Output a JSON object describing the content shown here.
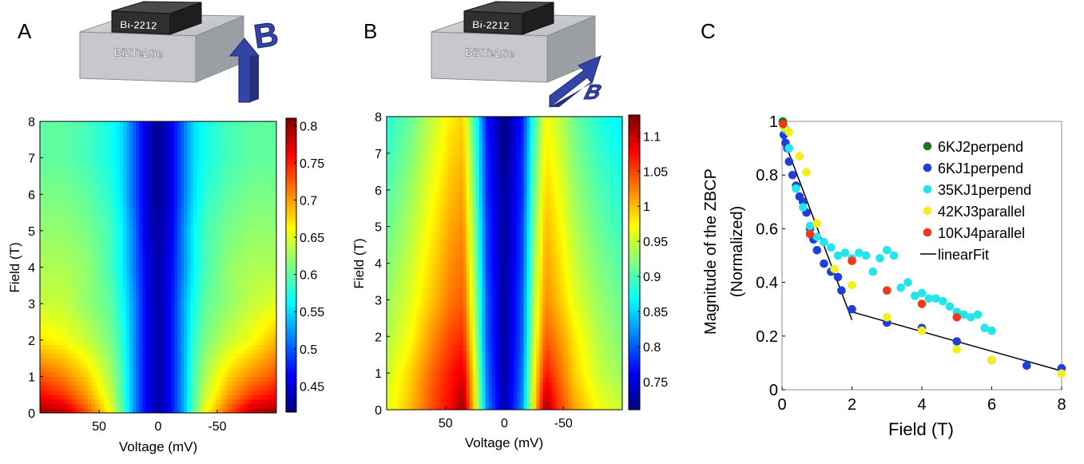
{
  "panels": {
    "a": {
      "letter": "A",
      "stack_top": "Bi-2212",
      "stack_bottom": "Bi2Te2Se",
      "field_symbol": "B",
      "field_orientation": "perpendicular"
    },
    "b": {
      "letter": "B",
      "stack_top": "Bi-2212",
      "stack_bottom": "Bi2Te2Se",
      "field_symbol": "B",
      "field_orientation": "parallel"
    },
    "c": {
      "letter": "C"
    }
  },
  "colors": {
    "colormap": "jet",
    "device_box": "#c9cbce",
    "device_chip": "#333333",
    "field_arrow": "#3444a6",
    "fit_line": "#000000"
  },
  "chart_data": [
    {
      "id": "A",
      "type": "heatmap",
      "xlabel": "Voltage (mV)",
      "ylabel": "Field (T)",
      "x_tick_labels": [
        "50",
        "0",
        "-50"
      ],
      "x_tick_values": [
        50,
        0,
        -50
      ],
      "xlim": [
        100,
        -100
      ],
      "y_tick_labels": [
        "0",
        "1",
        "2",
        "3",
        "4",
        "5",
        "6",
        "7",
        "8"
      ],
      "ylim": [
        0,
        8
      ],
      "colorbar_ticks": [
        "0.45",
        "0.5",
        "0.55",
        "0.6",
        "0.65",
        "0.7",
        "0.75",
        "0.8"
      ],
      "colorbar_tick_values": [
        0.45,
        0.5,
        0.55,
        0.6,
        0.65,
        0.7,
        0.75,
        0.8
      ],
      "clim": [
        0.415,
        0.81
      ],
      "colormap": "jet",
      "x_grid": [
        100,
        80,
        60,
        40,
        30,
        20,
        10,
        0,
        -10,
        -20,
        -30,
        -40,
        -60,
        -80,
        -100
      ],
      "y_grid": [
        0,
        0.5,
        1,
        2,
        3,
        4,
        5,
        6,
        7,
        8
      ],
      "z": [
        [
          0.8,
          0.79,
          0.73,
          0.66,
          0.6,
          0.52,
          0.46,
          0.43,
          0.46,
          0.52,
          0.6,
          0.66,
          0.73,
          0.79,
          0.8
        ],
        [
          0.76,
          0.74,
          0.7,
          0.64,
          0.59,
          0.52,
          0.46,
          0.43,
          0.46,
          0.52,
          0.59,
          0.64,
          0.7,
          0.74,
          0.76
        ],
        [
          0.73,
          0.71,
          0.68,
          0.63,
          0.59,
          0.52,
          0.46,
          0.43,
          0.46,
          0.52,
          0.59,
          0.63,
          0.68,
          0.71,
          0.73
        ],
        [
          0.67,
          0.66,
          0.64,
          0.61,
          0.58,
          0.52,
          0.46,
          0.43,
          0.46,
          0.52,
          0.58,
          0.61,
          0.64,
          0.66,
          0.69
        ],
        [
          0.64,
          0.64,
          0.62,
          0.6,
          0.57,
          0.52,
          0.46,
          0.43,
          0.46,
          0.52,
          0.57,
          0.6,
          0.62,
          0.64,
          0.65
        ],
        [
          0.63,
          0.63,
          0.62,
          0.59,
          0.56,
          0.51,
          0.46,
          0.43,
          0.46,
          0.51,
          0.56,
          0.59,
          0.62,
          0.63,
          0.63
        ],
        [
          0.62,
          0.62,
          0.61,
          0.59,
          0.56,
          0.51,
          0.45,
          0.43,
          0.45,
          0.51,
          0.56,
          0.59,
          0.61,
          0.62,
          0.62
        ],
        [
          0.61,
          0.61,
          0.6,
          0.58,
          0.55,
          0.5,
          0.45,
          0.42,
          0.45,
          0.5,
          0.55,
          0.58,
          0.6,
          0.61,
          0.61
        ],
        [
          0.6,
          0.6,
          0.59,
          0.57,
          0.55,
          0.5,
          0.45,
          0.42,
          0.45,
          0.5,
          0.55,
          0.57,
          0.59,
          0.6,
          0.6
        ],
        [
          0.6,
          0.6,
          0.59,
          0.57,
          0.55,
          0.5,
          0.45,
          0.42,
          0.45,
          0.5,
          0.55,
          0.57,
          0.59,
          0.6,
          0.6
        ]
      ]
    },
    {
      "id": "B",
      "type": "heatmap",
      "xlabel": "Voltage (mV)",
      "ylabel": "Field (T)",
      "x_tick_labels": [
        "50",
        "0",
        "-50"
      ],
      "x_tick_values": [
        50,
        0,
        -50
      ],
      "xlim": [
        100,
        -100
      ],
      "y_tick_labels": [
        "0",
        "1",
        "2",
        "3",
        "4",
        "5",
        "6",
        "7",
        "8"
      ],
      "ylim": [
        0,
        8
      ],
      "colorbar_ticks": [
        "0.75",
        "0.8",
        "0.85",
        "0.9",
        "0.95",
        "1",
        "1.05",
        "1.1"
      ],
      "colorbar_tick_values": [
        0.75,
        0.8,
        0.85,
        0.9,
        0.95,
        1.0,
        1.05,
        1.1
      ],
      "clim": [
        0.71,
        1.13
      ],
      "colormap": "jet",
      "x_grid": [
        100,
        80,
        60,
        45,
        35,
        25,
        15,
        0,
        -15,
        -25,
        -35,
        -45,
        -60,
        -80,
        -100
      ],
      "y_grid": [
        0,
        1,
        2,
        3,
        4,
        5,
        6,
        7,
        8
      ],
      "z": [
        [
          0.96,
          1.0,
          1.05,
          1.08,
          1.12,
          0.98,
          0.82,
          0.73,
          0.82,
          0.98,
          1.12,
          1.06,
          1.01,
          0.97,
          0.95
        ],
        [
          0.95,
          0.99,
          1.04,
          1.07,
          1.09,
          0.97,
          0.81,
          0.72,
          0.81,
          0.97,
          1.07,
          1.04,
          0.99,
          0.95,
          0.93
        ],
        [
          0.94,
          0.97,
          1.02,
          1.05,
          1.06,
          0.95,
          0.8,
          0.72,
          0.8,
          0.95,
          1.04,
          1.02,
          0.98,
          0.94,
          0.92
        ],
        [
          0.93,
          0.96,
          1.0,
          1.03,
          1.04,
          0.94,
          0.8,
          0.72,
          0.8,
          0.94,
          1.02,
          1.0,
          0.96,
          0.93,
          0.91
        ],
        [
          0.92,
          0.95,
          0.99,
          1.02,
          1.03,
          0.93,
          0.79,
          0.72,
          0.79,
          0.93,
          1.01,
          0.99,
          0.95,
          0.92,
          0.9
        ],
        [
          0.91,
          0.94,
          0.98,
          1.01,
          1.02,
          0.92,
          0.79,
          0.72,
          0.79,
          0.92,
          1.0,
          0.98,
          0.94,
          0.91,
          0.89
        ],
        [
          0.9,
          0.93,
          0.97,
          1.0,
          1.01,
          0.91,
          0.78,
          0.72,
          0.78,
          0.91,
          0.99,
          0.97,
          0.93,
          0.9,
          0.88
        ],
        [
          0.89,
          0.92,
          0.96,
          0.99,
          1.0,
          0.9,
          0.78,
          0.71,
          0.78,
          0.9,
          0.98,
          0.96,
          0.92,
          0.89,
          0.87
        ],
        [
          0.88,
          0.91,
          0.95,
          0.98,
          0.99,
          0.89,
          0.77,
          0.71,
          0.77,
          0.89,
          0.97,
          0.95,
          0.91,
          0.88,
          0.86
        ]
      ]
    },
    {
      "id": "C",
      "type": "scatter",
      "xlabel": "Field (T)",
      "ylabel": "Magnitude of the ZBCP",
      "ylabel2": "(Normalized)",
      "xlim": [
        0,
        8
      ],
      "ylim": [
        0,
        1
      ],
      "x_tick_labels": [
        "0",
        "2",
        "4",
        "6",
        "8"
      ],
      "x_tick_values": [
        0,
        2,
        4,
        6,
        8
      ],
      "y_tick_labels": [
        "0",
        "0.2",
        "0.4",
        "0.6",
        "0.8",
        "1"
      ],
      "y_tick_values": [
        0,
        0.2,
        0.4,
        0.6,
        0.8,
        1
      ],
      "legend_position": "top-right",
      "series": [
        {
          "name": "6KJ2perpend",
          "color": "#1a7a1a",
          "points": [
            [
              0.02,
              1.0
            ]
          ]
        },
        {
          "name": "6KJ1perpend",
          "color": "#1f3fd6",
          "points": [
            [
              0.05,
              0.95
            ],
            [
              0.1,
              0.92
            ],
            [
              0.15,
              0.9
            ],
            [
              0.2,
              0.85
            ],
            [
              0.3,
              0.8
            ],
            [
              0.4,
              0.76
            ],
            [
              0.5,
              0.72
            ],
            [
              0.6,
              0.7
            ],
            [
              0.7,
              0.66
            ],
            [
              0.8,
              0.6
            ],
            [
              0.9,
              0.56
            ],
            [
              1.0,
              0.52
            ],
            [
              1.2,
              0.47
            ],
            [
              1.4,
              0.44
            ],
            [
              1.6,
              0.42
            ],
            [
              1.7,
              0.37
            ],
            [
              2.0,
              0.3
            ],
            [
              3.0,
              0.25
            ],
            [
              4.0,
              0.23
            ],
            [
              5.0,
              0.18
            ],
            [
              6.0,
              0.11
            ],
            [
              7.0,
              0.09
            ],
            [
              8.0,
              0.08
            ]
          ]
        },
        {
          "name": "35KJ1perpend",
          "color": "#22e6ec",
          "points": [
            [
              0.1,
              0.97
            ],
            [
              0.2,
              0.9
            ],
            [
              0.4,
              0.75
            ],
            [
              0.6,
              0.68
            ],
            [
              0.8,
              0.61
            ],
            [
              1.0,
              0.57
            ],
            [
              1.2,
              0.55
            ],
            [
              1.4,
              0.53
            ],
            [
              1.6,
              0.5
            ],
            [
              1.8,
              0.51
            ],
            [
              2.0,
              0.49
            ],
            [
              2.2,
              0.51
            ],
            [
              2.4,
              0.5
            ],
            [
              2.6,
              0.44
            ],
            [
              2.8,
              0.49
            ],
            [
              3.0,
              0.52
            ],
            [
              3.2,
              0.5
            ],
            [
              3.4,
              0.38
            ],
            [
              3.6,
              0.4
            ],
            [
              3.8,
              0.35
            ],
            [
              4.0,
              0.36
            ],
            [
              4.2,
              0.34
            ],
            [
              4.4,
              0.34
            ],
            [
              4.6,
              0.33
            ],
            [
              4.8,
              0.31
            ],
            [
              5.0,
              0.29
            ],
            [
              5.2,
              0.28
            ],
            [
              5.4,
              0.27
            ],
            [
              5.6,
              0.28
            ],
            [
              5.8,
              0.23
            ],
            [
              6.0,
              0.22
            ]
          ]
        },
        {
          "name": "42KJ3parallel",
          "color": "#f2ef1c",
          "points": [
            [
              0.05,
              0.98
            ],
            [
              0.2,
              0.96
            ],
            [
              0.5,
              0.87
            ],
            [
              0.7,
              0.81
            ],
            [
              1.0,
              0.62
            ],
            [
              1.5,
              0.45
            ],
            [
              2.0,
              0.39
            ],
            [
              3.0,
              0.27
            ],
            [
              4.0,
              0.22
            ],
            [
              5.0,
              0.15
            ],
            [
              6.0,
              0.11
            ],
            [
              8.0,
              0.06
            ]
          ]
        },
        {
          "name": "10KJ4parallel",
          "color": "#ee3a1a",
          "points": [
            [
              0.03,
              0.99
            ],
            [
              0.8,
              0.58
            ],
            [
              2.0,
              0.48
            ],
            [
              3.0,
              0.37
            ],
            [
              4.0,
              0.32
            ],
            [
              5.0,
              0.27
            ]
          ]
        }
      ],
      "fit": {
        "name": "linearFit",
        "color": "#000000",
        "segments": [
          [
            [
              0.0,
              0.95
            ],
            [
              2.0,
              0.26
            ]
          ],
          [
            [
              2.0,
              0.29
            ],
            [
              8.0,
              0.07
            ]
          ]
        ]
      }
    }
  ]
}
